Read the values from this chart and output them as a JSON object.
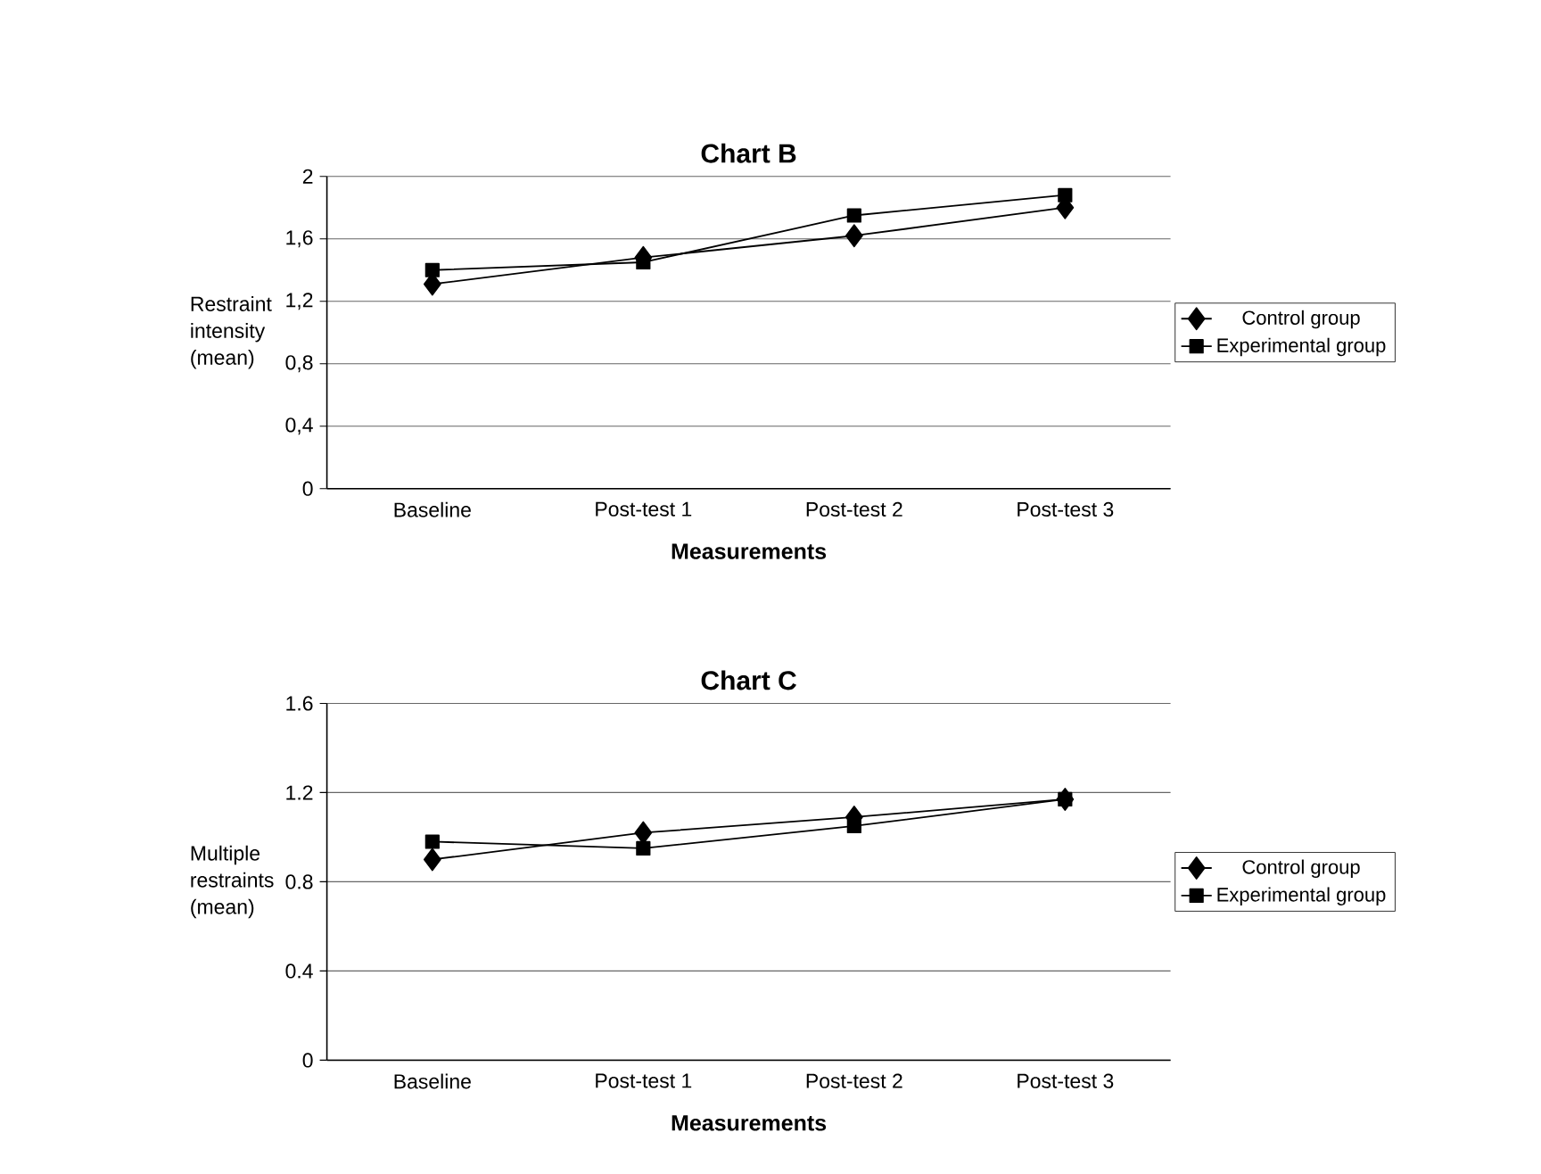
{
  "chart_data": [
    {
      "type": "line",
      "title": "Chart B",
      "xlabel": "Measurements",
      "ylabel": "Restraint intensity (mean)",
      "categories": [
        "Baseline",
        "Post-test 1",
        "Post-test 2",
        "Post-test 3"
      ],
      "series": [
        {
          "name": "Control group",
          "color": "#000000",
          "marker": "diamond",
          "values": [
            1.31,
            1.48,
            1.62,
            1.8
          ]
        },
        {
          "name": "Experimental group",
          "color": "#000000",
          "marker": "square",
          "values": [
            1.4,
            1.45,
            1.75,
            1.88
          ]
        }
      ],
      "ylim": [
        0,
        2
      ],
      "yticks": [
        0,
        {
          "value": 0.4,
          "label": "0,4"
        },
        {
          "value": 0.8,
          "label": "0,8"
        },
        {
          "value": 1.2,
          "label": "1,2"
        },
        {
          "value": 1.6,
          "label": "1,6"
        },
        2
      ],
      "grid": "y",
      "legend": "right",
      "line_style": "solid"
    },
    {
      "type": "line",
      "title": "Chart C",
      "xlabel": "Measurements",
      "ylabel": "Multiple restraints (mean)",
      "categories": [
        "Baseline",
        "Post-test 1",
        "Post-test 2",
        "Post-test 3"
      ],
      "series": [
        {
          "name": "Control group",
          "color": "#000000",
          "marker": "diamond",
          "values": [
            0.9,
            1.02,
            1.09,
            1.17
          ]
        },
        {
          "name": "Experimental group",
          "color": "#000000",
          "marker": "square",
          "values": [
            0.98,
            0.95,
            1.05,
            1.17
          ]
        }
      ],
      "ylim": [
        0,
        1.6
      ],
      "yticks": [
        0,
        0.4,
        0.8,
        1.2,
        1.6
      ],
      "grid": "y",
      "legend": "right",
      "line_style": "solid"
    }
  ]
}
